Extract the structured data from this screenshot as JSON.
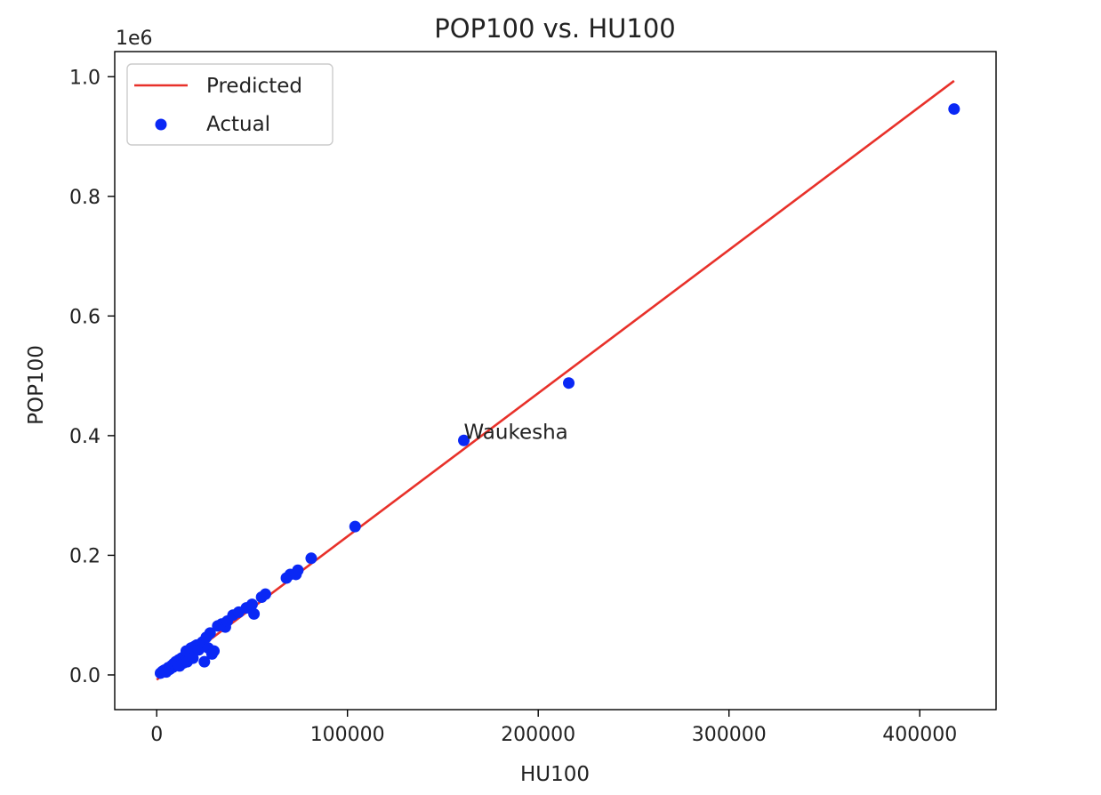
{
  "chart_data": {
    "type": "scatter",
    "title": "POP100 vs. HU100",
    "xlabel": "HU100",
    "ylabel": "POP100",
    "y_offset_label": "1e6",
    "xlim": [
      -22000,
      440000
    ],
    "ylim": [
      -0.058,
      1.042
    ],
    "y_scale": 1000000,
    "x_ticks": [
      0,
      100000,
      200000,
      300000,
      400000
    ],
    "x_tick_labels": [
      "0",
      "100000",
      "200000",
      "300000",
      "400000"
    ],
    "y_ticks": [
      0.0,
      0.2,
      0.4,
      0.6,
      0.8,
      1.0
    ],
    "y_tick_labels": [
      "0.0",
      "0.2",
      "0.4",
      "0.6",
      "0.8",
      "1.0"
    ],
    "grid": false,
    "legend_position": "top-left",
    "series": [
      {
        "name": "Predicted",
        "kind": "line",
        "color": "#e8312a",
        "x": [
          0,
          418000
        ],
        "y": [
          -0.008,
          0.993
        ]
      },
      {
        "name": "Actual",
        "kind": "scatter",
        "color": "#0a28f5",
        "x": [
          2000,
          3000,
          4000,
          5000,
          6000,
          6500,
          7000,
          8000,
          8500,
          9000,
          10000,
          11000,
          11500,
          12000,
          13000,
          14000,
          15000,
          15500,
          16000,
          17000,
          18000,
          19000,
          20000,
          21000,
          22000,
          24000,
          25000,
          26000,
          27000,
          28000,
          29000,
          30000,
          32000,
          34000,
          36000,
          37000,
          40000,
          43000,
          47000,
          50000,
          51000,
          55000,
          57000,
          68000,
          70000,
          73000,
          74000,
          81000,
          104000,
          161000,
          216000,
          418000
        ],
        "y": [
          0.003,
          0.006,
          0.008,
          0.005,
          0.012,
          0.009,
          0.01,
          0.016,
          0.013,
          0.019,
          0.022,
          0.018,
          0.025,
          0.015,
          0.028,
          0.02,
          0.033,
          0.04,
          0.022,
          0.038,
          0.045,
          0.028,
          0.048,
          0.05,
          0.042,
          0.055,
          0.022,
          0.063,
          0.045,
          0.07,
          0.035,
          0.04,
          0.082,
          0.085,
          0.08,
          0.09,
          0.1,
          0.105,
          0.112,
          0.118,
          0.102,
          0.13,
          0.135,
          0.162,
          0.168,
          0.168,
          0.175,
          0.195,
          0.248,
          0.392,
          0.488,
          0.946
        ]
      }
    ],
    "annotations": [
      {
        "text": "Waukesha",
        "x": 161000,
        "y": 0.392
      }
    ]
  }
}
